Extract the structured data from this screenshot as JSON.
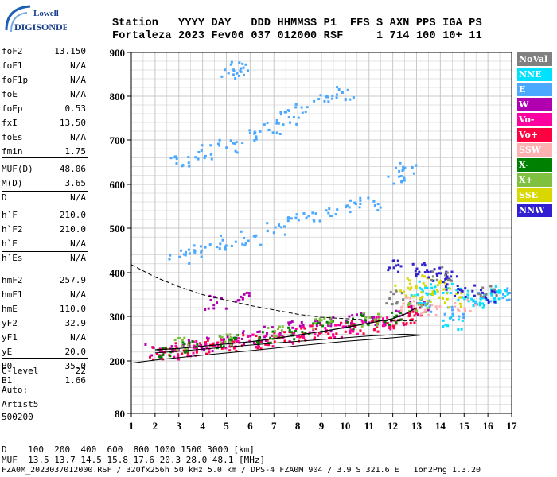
{
  "logo": {
    "line1": "Lowell",
    "line2": "DIGISONDE"
  },
  "header": {
    "row1": "Station   YYYY DAY   DDD HHMMSS P1  FFS S AXN PPS IGA PS",
    "row2": "Fortaleza 2023 Fev06 037 012000 RSF     1 714 100 10+ 11"
  },
  "params": [
    {
      "k": "foF2",
      "v": "13.150"
    },
    {
      "k": "foF1",
      "v": "N/A"
    },
    {
      "k": "foF1p",
      "v": "N/A"
    },
    {
      "k": "foE",
      "v": "N/A"
    },
    {
      "k": "foEp",
      "v": "0.53"
    },
    {
      "k": "fxI",
      "v": "13.50"
    },
    {
      "k": "foEs",
      "v": "N/A"
    },
    {
      "k": "fmin",
      "v": "1.75"
    },
    {
      "k": "MUF(D)",
      "v": "48.06"
    },
    {
      "k": "M(D)",
      "v": "3.65"
    },
    {
      "k": "D",
      "v": "N/A"
    },
    {
      "k": "h`F",
      "v": "210.0"
    },
    {
      "k": "h`F2",
      "v": "210.0"
    },
    {
      "k": "h`E",
      "v": "N/A"
    },
    {
      "k": "h`Es",
      "v": "N/A"
    },
    {
      "k": "hmF2",
      "v": "257.9"
    },
    {
      "k": "hmF1",
      "v": "N/A"
    },
    {
      "k": "hmE",
      "v": "110.0"
    },
    {
      "k": "yF2",
      "v": "32.9"
    },
    {
      "k": "yF1",
      "v": "N/A"
    },
    {
      "k": "yE",
      "v": "20.0"
    },
    {
      "k": "B0",
      "v": "35.0"
    },
    {
      "k": "B1",
      "v": "1.66"
    },
    {
      "k": "C-level",
      "v": "22"
    }
  ],
  "auto": {
    "line1": "Auto:",
    "line2": "Artist5",
    "line3": "500200"
  },
  "legend": [
    {
      "label": "NoVal",
      "color": "#808080"
    },
    {
      "label": "NNE",
      "color": "#00e0ff"
    },
    {
      "label": "E",
      "color": "#4aa8ff"
    },
    {
      "label": "W",
      "color": "#b000b0"
    },
    {
      "label": "Vo-",
      "color": "#ff00a0"
    },
    {
      "label": "Vo+",
      "color": "#ff0040"
    },
    {
      "label": "SSW",
      "color": "#ffb0b0"
    },
    {
      "label": "X-",
      "color": "#008000"
    },
    {
      "label": "X+",
      "color": "#80c040"
    },
    {
      "label": "SSE",
      "color": "#d8d800"
    },
    {
      "label": "NNW",
      "color": "#3020d0"
    }
  ],
  "bottom": {
    "line1": "D    100  200  400  600  800 1000 1500 3000 [km]",
    "line2": "MUF  13.5 13.7 14.5 15.8 17.6 20.3 28.0 48.1 [MHz]",
    "line3": "FZA0M_2023037012000.RSF / 320fx256h 50 kHz 5.0 km / DPS-4 FZA0M 904 / 3.9 S 321.6 E   Ion2Png 1.3.20"
  },
  "chart_data": {
    "type": "scatter",
    "x_ticks": [
      "1",
      "2",
      "3",
      "4",
      "5",
      "6",
      "7",
      "8",
      "9",
      "10",
      "11",
      "12",
      "13",
      "14",
      "15",
      "16",
      "17"
    ],
    "y_ticks": [
      "80",
      "200",
      "300",
      "400",
      "500",
      "600",
      "700",
      "800",
      "900"
    ],
    "xlim": [
      1,
      17
    ],
    "ylim": [
      80,
      900
    ],
    "grid": true,
    "legend_position": "right",
    "series": [
      {
        "name": "W",
        "color": "#b000b0",
        "points": [
          [
            2,
            225
          ],
          [
            3,
            235
          ],
          [
            4,
            240
          ],
          [
            5,
            250
          ],
          [
            6,
            255
          ],
          [
            7,
            265
          ],
          [
            8,
            275
          ],
          [
            9,
            285
          ],
          [
            10,
            290
          ],
          [
            11,
            300
          ],
          [
            12,
            300
          ],
          [
            13,
            320
          ],
          [
            4.5,
            335
          ],
          [
            5.5,
            340
          ]
        ]
      },
      {
        "name": "Vo+",
        "color": "#ff0040",
        "points": [
          [
            2,
            220
          ],
          [
            3,
            228
          ],
          [
            4,
            235
          ],
          [
            5,
            240
          ],
          [
            6,
            245
          ],
          [
            7,
            255
          ],
          [
            8,
            260
          ],
          [
            9,
            270
          ],
          [
            10,
            275
          ],
          [
            11,
            280
          ],
          [
            12,
            285
          ],
          [
            12.8,
            300
          ],
          [
            13,
            320
          ]
        ]
      },
      {
        "name": "Vo-",
        "color": "#ff00a0",
        "points": [
          [
            2.5,
            222
          ],
          [
            3.5,
            230
          ],
          [
            4.5,
            238
          ],
          [
            5.5,
            242
          ],
          [
            6.5,
            250
          ],
          [
            7.5,
            258
          ],
          [
            8.5,
            265
          ],
          [
            9.5,
            272
          ],
          [
            10.5,
            280
          ],
          [
            11.5,
            285
          ]
        ]
      },
      {
        "name": "E",
        "color": "#4aa8ff",
        "points": [
          [
            3,
            440
          ],
          [
            4,
            455
          ],
          [
            5,
            470
          ],
          [
            6,
            480
          ],
          [
            7,
            500
          ],
          [
            8,
            525
          ],
          [
            9,
            535
          ],
          [
            10,
            550
          ],
          [
            11,
            560
          ],
          [
            3,
            660
          ],
          [
            4,
            675
          ],
          [
            5,
            690
          ],
          [
            6,
            710
          ],
          [
            7,
            730
          ],
          [
            7.5,
            750
          ],
          [
            8,
            770
          ],
          [
            9,
            790
          ],
          [
            10,
            810
          ],
          [
            12,
            620
          ],
          [
            12.5,
            640
          ],
          [
            13.5,
            330
          ],
          [
            14.5,
            310
          ],
          [
            15.5,
            340
          ],
          [
            16.5,
            350
          ],
          [
            5.2,
            860
          ],
          [
            5.5,
            865
          ]
        ]
      },
      {
        "name": "NNE",
        "color": "#00e0ff",
        "points": [
          [
            13,
            340
          ],
          [
            13.5,
            370
          ],
          [
            14,
            360
          ],
          [
            14.5,
            290
          ],
          [
            15,
            350
          ],
          [
            15.5,
            330
          ],
          [
            16,
            345
          ],
          [
            16.5,
            355
          ]
        ]
      },
      {
        "name": "X-",
        "color": "#008000",
        "points": [
          [
            2.5,
            225
          ],
          [
            3.5,
            232
          ],
          [
            5,
            245
          ],
          [
            6.5,
            255
          ],
          [
            8,
            268
          ],
          [
            9,
            280
          ],
          [
            10.5,
            290
          ],
          [
            12,
            300
          ]
        ]
      },
      {
        "name": "X+",
        "color": "#80c040",
        "points": [
          [
            3,
            238
          ],
          [
            5,
            250
          ],
          [
            7,
            265
          ],
          [
            9,
            285
          ],
          [
            11,
            295
          ],
          [
            13,
            330
          ]
        ]
      },
      {
        "name": "SSE",
        "color": "#d8d800",
        "points": [
          [
            12.5,
            360
          ],
          [
            13,
            380
          ],
          [
            13.5,
            350
          ],
          [
            14,
            370
          ],
          [
            14.5,
            340
          ]
        ]
      },
      {
        "name": "NNW",
        "color": "#3020d0",
        "points": [
          [
            12.2,
            420
          ],
          [
            13,
            410
          ],
          [
            13.5,
            400
          ],
          [
            14,
            390
          ],
          [
            14.5,
            380
          ],
          [
            15,
            360
          ],
          [
            16,
            350
          ]
        ]
      },
      {
        "name": "SSW",
        "color": "#ffb0b0",
        "points": [
          [
            12.5,
            330
          ],
          [
            13.5,
            320
          ],
          [
            15,
            330
          ]
        ]
      },
      {
        "name": "NoVal",
        "color": "#808080",
        "points": [
          [
            12,
            345
          ],
          [
            14,
            400
          ],
          [
            16,
            360
          ]
        ]
      }
    ],
    "profile_curve": [
      [
        1,
        418
      ],
      [
        2,
        390
      ],
      [
        3,
        368
      ],
      [
        4,
        350
      ],
      [
        5,
        337
      ],
      [
        6,
        325
      ],
      [
        7,
        315
      ],
      [
        8,
        305
      ],
      [
        9,
        298
      ],
      [
        10,
        295
      ],
      [
        11,
        292
      ],
      [
        12,
        290
      ],
      [
        13,
        290
      ]
    ],
    "trace_curve": [
      [
        2,
        225
      ],
      [
        3,
        228
      ],
      [
        4,
        233
      ],
      [
        5,
        238
      ],
      [
        6,
        243
      ],
      [
        7,
        250
      ],
      [
        8,
        258
      ],
      [
        9,
        266
      ],
      [
        10,
        275
      ],
      [
        11,
        285
      ],
      [
        12,
        295
      ],
      [
        12.5,
        305
      ],
      [
        13,
        320
      ]
    ],
    "lower_curve": [
      [
        1,
        195
      ],
      [
        2,
        202
      ],
      [
        4,
        213
      ],
      [
        6,
        223
      ],
      [
        8,
        234
      ],
      [
        10,
        244
      ],
      [
        12,
        252
      ],
      [
        13.2,
        258
      ],
      [
        12.5,
        260
      ],
      [
        11,
        256
      ],
      [
        9,
        248
      ],
      [
        7,
        240
      ],
      [
        5,
        231
      ],
      [
        3,
        222
      ],
      [
        2,
        218
      ]
    ]
  }
}
